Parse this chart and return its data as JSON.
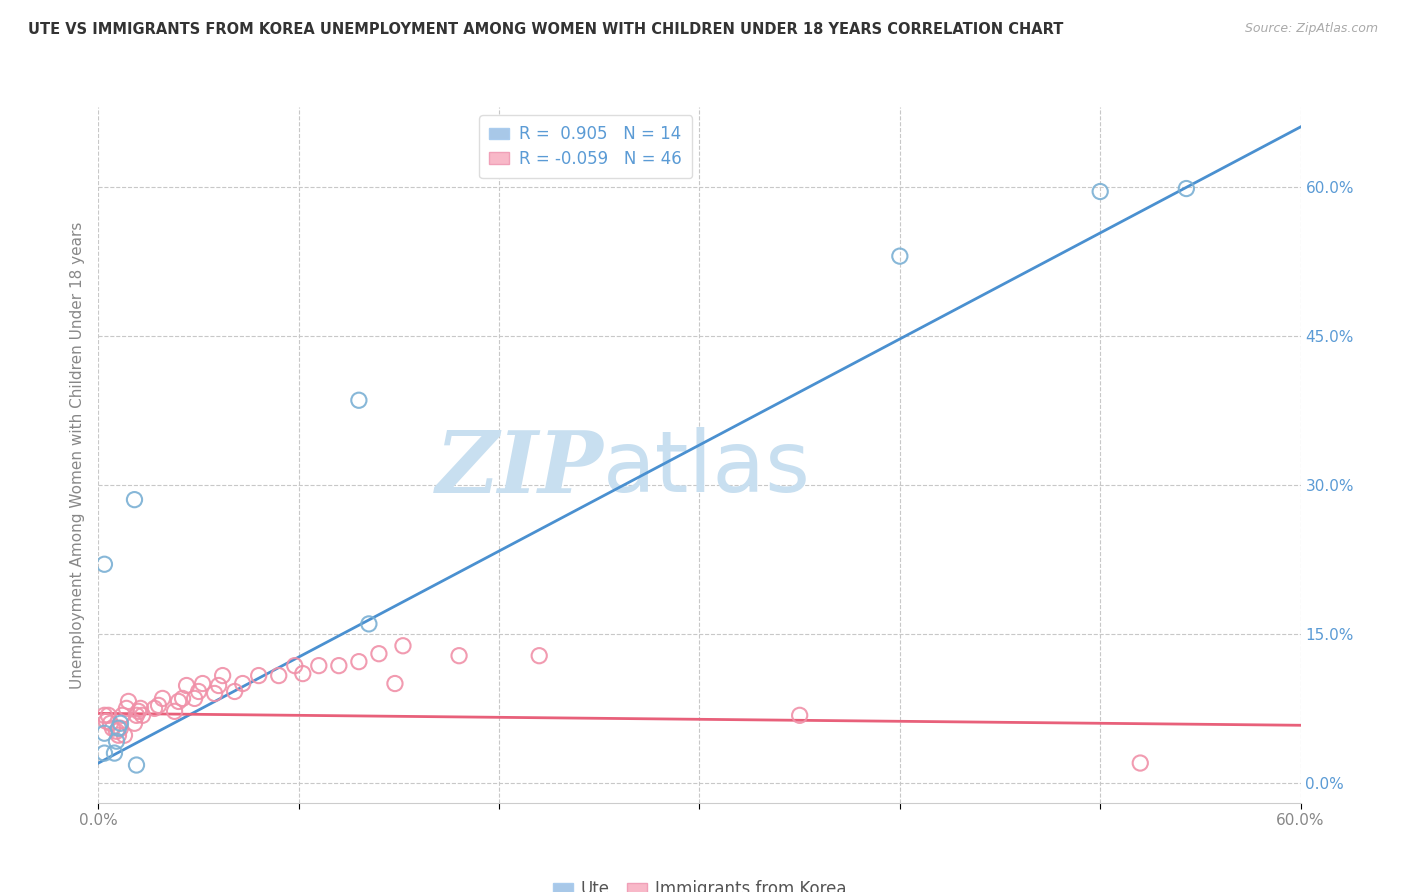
{
  "title": "UTE VS IMMIGRANTS FROM KOREA UNEMPLOYMENT AMONG WOMEN WITH CHILDREN UNDER 18 YEARS CORRELATION CHART",
  "source": "Source: ZipAtlas.com",
  "ylabel": "Unemployment Among Women with Children Under 18 years",
  "xlim": [
    0.0,
    0.6
  ],
  "ylim": [
    -0.02,
    0.68
  ],
  "yticks": [
    0.0,
    0.15,
    0.3,
    0.45,
    0.6
  ],
  "ytick_labels": [
    "0.0%",
    "15.0%",
    "30.0%",
    "45.0%",
    "60.0%"
  ],
  "xticks": [
    0.0,
    0.1,
    0.2,
    0.3,
    0.4,
    0.5,
    0.6
  ],
  "xtick_labels": [
    "0.0%",
    "",
    "",
    "",
    "",
    "",
    "60.0%"
  ],
  "ute_R": 0.905,
  "ute_N": 14,
  "korea_R": -0.059,
  "korea_N": 46,
  "ute_legend_color": "#a8c8e8",
  "korea_legend_color": "#f8b8c8",
  "ute_dot_color": "#7ab0d4",
  "korea_dot_color": "#f090a8",
  "ute_line_color": "#4a90d0",
  "korea_line_color": "#e8607a",
  "watermark_color": "#c8dff0",
  "background_color": "#ffffff",
  "grid_color": "#c8c8c8",
  "text_color": "#5b9bd5",
  "title_color": "#333333",
  "ylabel_color": "#888888",
  "ute_scatter_x": [
    0.003,
    0.003,
    0.003,
    0.008,
    0.009,
    0.01,
    0.011,
    0.018,
    0.019,
    0.13,
    0.135,
    0.4,
    0.5,
    0.543
  ],
  "ute_scatter_y": [
    0.22,
    0.05,
    0.03,
    0.03,
    0.042,
    0.055,
    0.06,
    0.285,
    0.018,
    0.385,
    0.16,
    0.53,
    0.595,
    0.598
  ],
  "korea_scatter_x": [
    0.003,
    0.004,
    0.005,
    0.006,
    0.007,
    0.009,
    0.01,
    0.011,
    0.012,
    0.013,
    0.014,
    0.015,
    0.018,
    0.019,
    0.02,
    0.021,
    0.022,
    0.028,
    0.03,
    0.032,
    0.038,
    0.04,
    0.042,
    0.044,
    0.048,
    0.05,
    0.052,
    0.058,
    0.06,
    0.062,
    0.068,
    0.072,
    0.08,
    0.09,
    0.098,
    0.102,
    0.11,
    0.12,
    0.13,
    0.14,
    0.148,
    0.152,
    0.18,
    0.22,
    0.35,
    0.52
  ],
  "korea_scatter_y": [
    0.068,
    0.062,
    0.068,
    0.06,
    0.055,
    0.052,
    0.048,
    0.055,
    0.068,
    0.048,
    0.075,
    0.082,
    0.06,
    0.068,
    0.072,
    0.075,
    0.068,
    0.075,
    0.078,
    0.085,
    0.072,
    0.082,
    0.085,
    0.098,
    0.085,
    0.092,
    0.1,
    0.09,
    0.098,
    0.108,
    0.092,
    0.1,
    0.108,
    0.108,
    0.118,
    0.11,
    0.118,
    0.118,
    0.122,
    0.13,
    0.1,
    0.138,
    0.128,
    0.128,
    0.068,
    0.02
  ],
  "ute_line_x": [
    0.0,
    0.6
  ],
  "ute_line_y": [
    0.02,
    0.66
  ],
  "korea_line_x": [
    0.0,
    0.6
  ],
  "korea_line_y": [
    0.07,
    0.058
  ]
}
